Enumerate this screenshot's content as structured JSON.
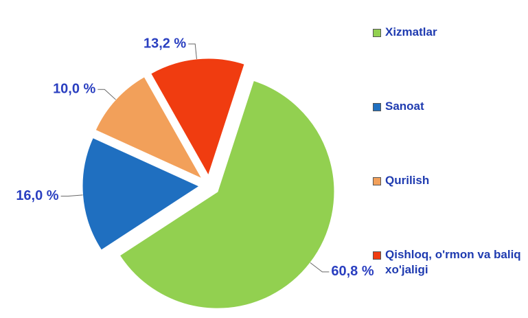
{
  "chart_data": {
    "type": "pie",
    "categories": [
      "Xizmatlar",
      "Sanoat",
      "Qurilish",
      "Qishloq, o'rmon va baliq xo'jaligi"
    ],
    "values": [
      60.8,
      16.0,
      10.0,
      13.2
    ],
    "value_labels": [
      "60,8 %",
      "16,0 %",
      "10,0 %",
      "13,2 %"
    ],
    "colors": [
      "#92d050",
      "#1f6fc0",
      "#f2a05a",
      "#f03c10"
    ]
  }
}
